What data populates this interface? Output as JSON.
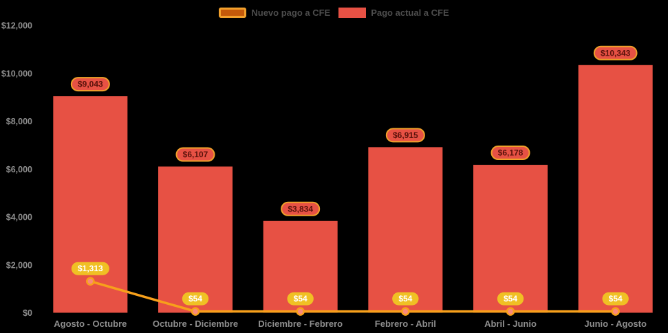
{
  "chart_data": {
    "type": "bar+line",
    "categories": [
      "Agosto - Octubre",
      "Octubre - Diciembre",
      "Diciembre - Febrero",
      "Febrero - Abril",
      "Abril - Junio",
      "Junio - Agosto"
    ],
    "series": [
      {
        "name": "Nuevo pago a CFE",
        "type": "line",
        "values": [
          1313,
          54,
          54,
          54,
          54,
          54
        ],
        "labels": [
          "$1,313",
          "$54",
          "$54",
          "$54",
          "$54",
          "$54"
        ]
      },
      {
        "name": "Pago actual a CFE",
        "type": "bar",
        "values": [
          9043,
          6107,
          3834,
          6915,
          6178,
          10343
        ],
        "labels": [
          "$9,043",
          "$6,107",
          "$3,834",
          "$6,915",
          "$6,178",
          "$10,343"
        ]
      }
    ],
    "y_axis": {
      "min": 0,
      "max": 12000,
      "tick_interval": 2000,
      "tick_labels": [
        "$0",
        "$2,000",
        "$4,000",
        "$6,000",
        "$8,000",
        "$10,000",
        "$12,000"
      ]
    },
    "legend_position": "top-center",
    "grid": false,
    "title": "",
    "xlabel": "",
    "ylabel": ""
  },
  "colors": {
    "background": "#000000",
    "bar_fill": "#e75144",
    "line_stroke": "#f7a01b",
    "point_fill": "#fa897a",
    "point_stroke": "#f7a01b",
    "bar_badge_fill": "#e75144",
    "bar_badge_border": "#f0a12a",
    "bar_badge_text": "#5a120b",
    "line_badge_fill": "#f0c024",
    "line_badge_text": "#ffffff",
    "axis_text": "#8e8e8e",
    "legend_text": "#4d4d4d",
    "legend_line_swatch_fill": "#c4590a",
    "legend_line_swatch_border": "#f2a02c"
  }
}
